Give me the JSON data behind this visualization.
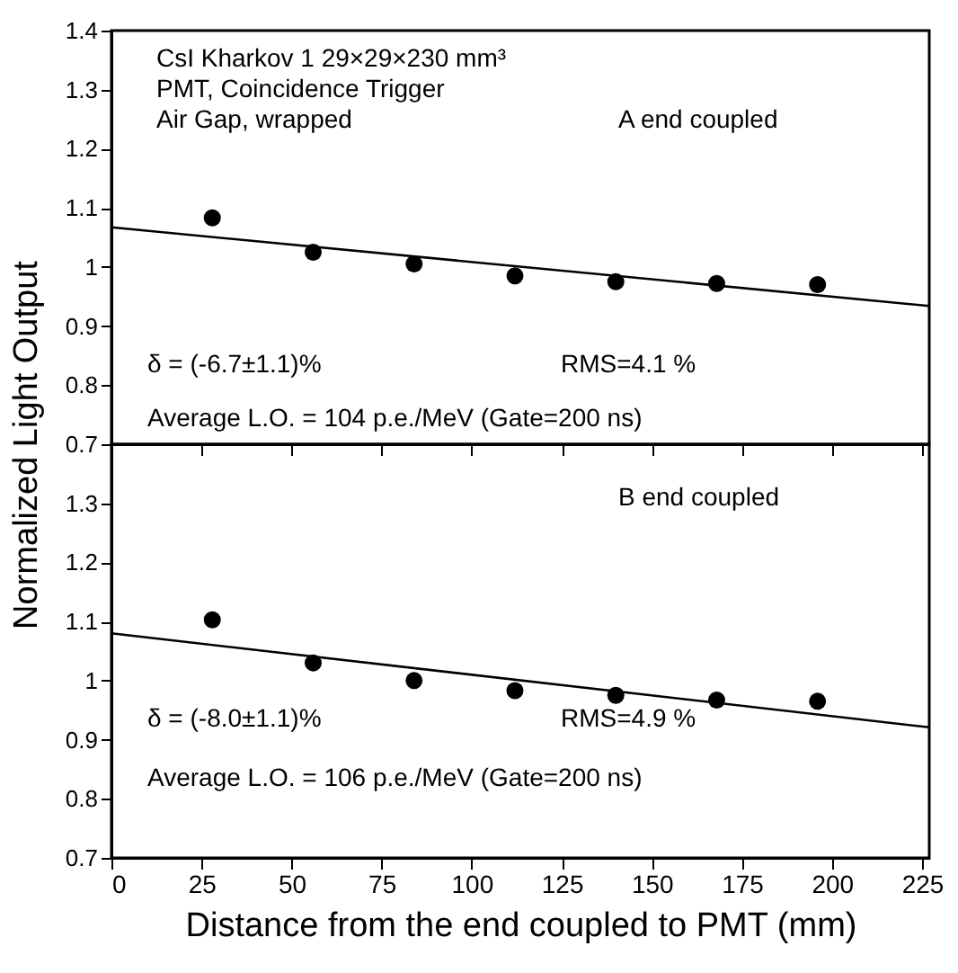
{
  "chart_data": [
    {
      "type": "scatter",
      "ylabel": "Normalized Light Output",
      "xlim": [
        0,
        227
      ],
      "ylim": [
        0.7,
        1.4
      ],
      "xticks": [
        0,
        25,
        50,
        75,
        100,
        125,
        150,
        175,
        200,
        225
      ],
      "yticks": [
        0.7,
        0.8,
        0.9,
        1,
        1.1,
        1.2,
        1.3,
        1.4
      ],
      "tick_labels": "y",
      "grid": false,
      "annotations": [
        "CsI Kharkov 1 29×29×230 mm³",
        "PMT, Coincidence Trigger",
        "Air Gap, wrapped",
        "A end coupled",
        "δ = (-6.7±1.1)%",
        "RMS=4.1 %",
        "Average L.O. = 104 p.e./MeV  (Gate=200 ns)"
      ],
      "series": [
        {
          "type": "scatter",
          "color": "#000000",
          "marker": "circle",
          "x": [
            28,
            56,
            84,
            112,
            140,
            168,
            196
          ],
          "values": [
            1.083,
            1.025,
            1.005,
            0.985,
            0.975,
            0.972,
            0.97
          ]
        },
        {
          "type": "line",
          "color": "#000000",
          "x": [
            0,
            227
          ],
          "values": [
            1.067,
            0.934
          ]
        }
      ]
    },
    {
      "type": "scatter",
      "xlabel": "Distance from the end coupled to PMT (mm)",
      "xlim": [
        0,
        227
      ],
      "ylim": [
        0.7,
        1.4
      ],
      "xticks": [
        0,
        25,
        50,
        75,
        100,
        125,
        150,
        175,
        200,
        225
      ],
      "yticks": [
        0.7,
        0.8,
        0.9,
        1,
        1.1,
        1.2,
        1.3
      ],
      "grid": false,
      "annotations": [
        "B end coupled",
        "δ = (-8.0±1.1)%",
        "RMS=4.9 %",
        "Average L.O. = 106 p.e./MeV  (Gate=200 ns)"
      ],
      "series": [
        {
          "type": "scatter",
          "color": "#000000",
          "marker": "circle",
          "x": [
            28,
            56,
            84,
            112,
            140,
            168,
            196
          ],
          "values": [
            1.103,
            1.03,
            1.0,
            0.983,
            0.975,
            0.967,
            0.965
          ]
        },
        {
          "type": "line",
          "color": "#000000",
          "x": [
            0,
            227
          ],
          "values": [
            1.08,
            0.921
          ]
        }
      ]
    }
  ]
}
